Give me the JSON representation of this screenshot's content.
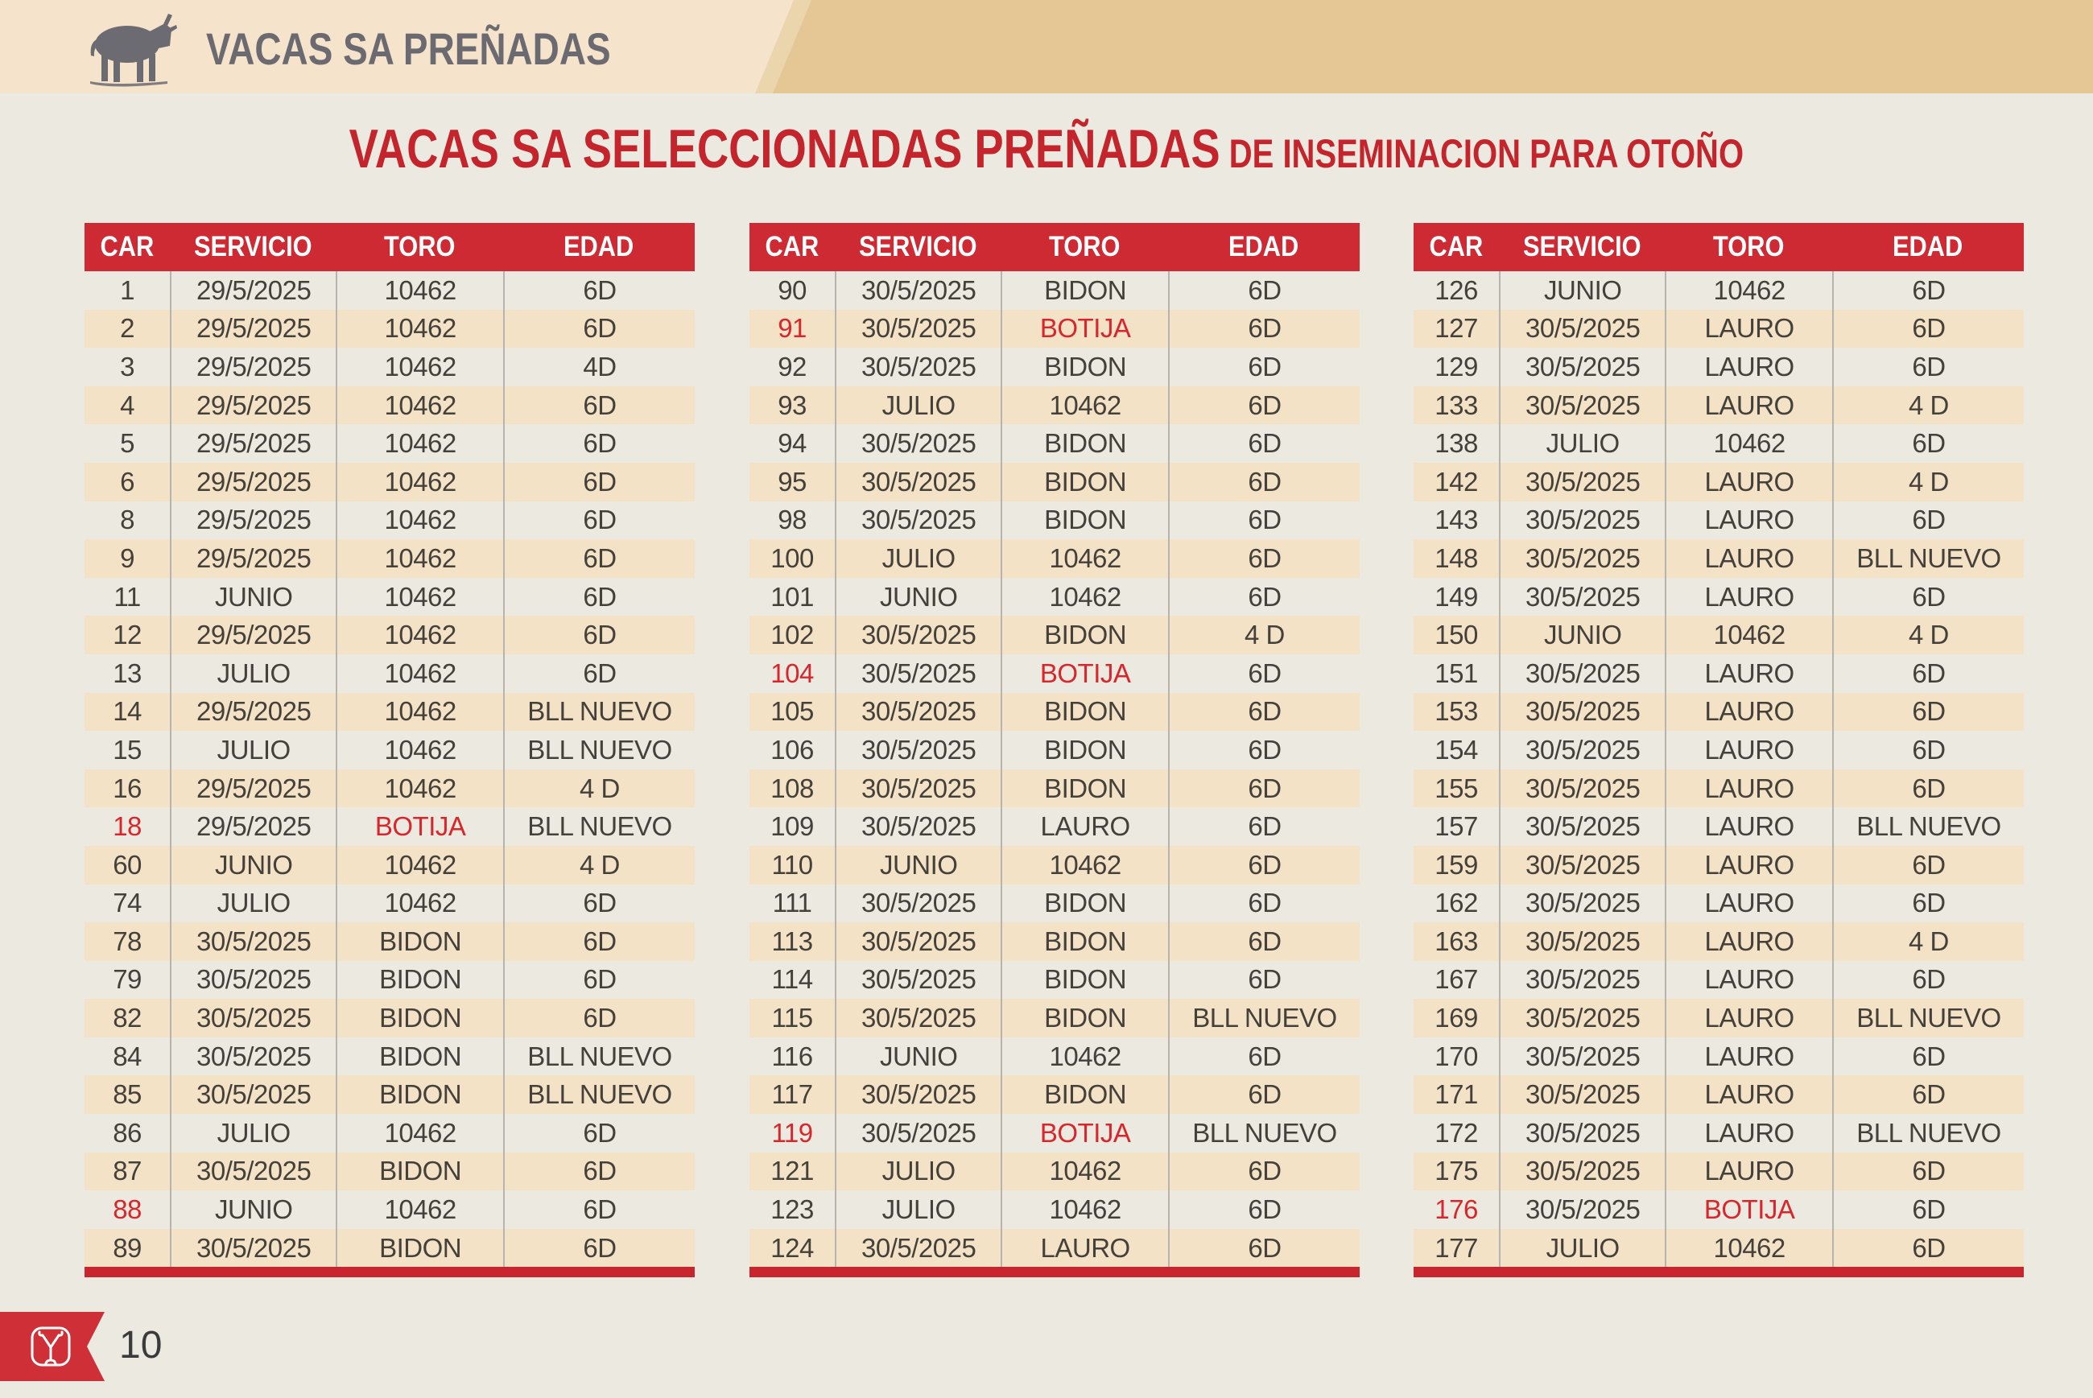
{
  "header": {
    "title": "VACAS SA PREÑADAS"
  },
  "page_title": {
    "main": "VACAS SA SELECCIONADAS PREÑADAS",
    "sub": " DE INSEMINACION PARA OTOÑO"
  },
  "columns": [
    "CAR",
    "SERVICIO",
    "TORO",
    "EDAD"
  ],
  "colors": {
    "band_light": "#F5E3CB",
    "band_dark": "#E5C795",
    "header_red": "#CE2A33",
    "title_red": "#C4242B",
    "highlight_red": "#D8262C",
    "row_tan": "#F4E2C7",
    "page_bg": "#ECEAE0",
    "text_dark": "#44403A",
    "text_gray": "#6B6A70"
  },
  "tables": [
    {
      "rows": [
        {
          "car": "1",
          "servicio": "29/5/2025",
          "toro": "10462",
          "edad": "6D",
          "car_red": false,
          "toro_red": false
        },
        {
          "car": "2",
          "servicio": "29/5/2025",
          "toro": "10462",
          "edad": "6D",
          "car_red": false,
          "toro_red": false
        },
        {
          "car": "3",
          "servicio": "29/5/2025",
          "toro": "10462",
          "edad": "4D",
          "car_red": false,
          "toro_red": false
        },
        {
          "car": "4",
          "servicio": "29/5/2025",
          "toro": "10462",
          "edad": "6D",
          "car_red": false,
          "toro_red": false
        },
        {
          "car": "5",
          "servicio": "29/5/2025",
          "toro": "10462",
          "edad": "6D",
          "car_red": false,
          "toro_red": false
        },
        {
          "car": "6",
          "servicio": "29/5/2025",
          "toro": "10462",
          "edad": "6D",
          "car_red": false,
          "toro_red": false
        },
        {
          "car": "8",
          "servicio": "29/5/2025",
          "toro": "10462",
          "edad": "6D",
          "car_red": false,
          "toro_red": false
        },
        {
          "car": "9",
          "servicio": "29/5/2025",
          "toro": "10462",
          "edad": "6D",
          "car_red": false,
          "toro_red": false
        },
        {
          "car": "11",
          "servicio": "JUNIO",
          "toro": "10462",
          "edad": "6D",
          "car_red": false,
          "toro_red": false
        },
        {
          "car": "12",
          "servicio": "29/5/2025",
          "toro": "10462",
          "edad": "6D",
          "car_red": false,
          "toro_red": false
        },
        {
          "car": "13",
          "servicio": "JULIO",
          "toro": "10462",
          "edad": "6D",
          "car_red": false,
          "toro_red": false
        },
        {
          "car": "14",
          "servicio": "29/5/2025",
          "toro": "10462",
          "edad": "BLL NUEVO",
          "car_red": false,
          "toro_red": false
        },
        {
          "car": "15",
          "servicio": "JULIO",
          "toro": "10462",
          "edad": "BLL NUEVO",
          "car_red": false,
          "toro_red": false
        },
        {
          "car": "16",
          "servicio": "29/5/2025",
          "toro": "10462",
          "edad": "4 D",
          "car_red": false,
          "toro_red": false
        },
        {
          "car": "18",
          "servicio": "29/5/2025",
          "toro": "BOTIJA",
          "edad": "BLL NUEVO",
          "car_red": true,
          "toro_red": true
        },
        {
          "car": "60",
          "servicio": "JUNIO",
          "toro": "10462",
          "edad": "4 D",
          "car_red": false,
          "toro_red": false
        },
        {
          "car": "74",
          "servicio": "JULIO",
          "toro": "10462",
          "edad": "6D",
          "car_red": false,
          "toro_red": false
        },
        {
          "car": "78",
          "servicio": "30/5/2025",
          "toro": "BIDON",
          "edad": "6D",
          "car_red": false,
          "toro_red": false
        },
        {
          "car": "79",
          "servicio": "30/5/2025",
          "toro": "BIDON",
          "edad": "6D",
          "car_red": false,
          "toro_red": false
        },
        {
          "car": "82",
          "servicio": "30/5/2025",
          "toro": "BIDON",
          "edad": "6D",
          "car_red": false,
          "toro_red": false
        },
        {
          "car": "84",
          "servicio": "30/5/2025",
          "toro": "BIDON",
          "edad": "BLL NUEVO",
          "car_red": false,
          "toro_red": false
        },
        {
          "car": "85",
          "servicio": "30/5/2025",
          "toro": "BIDON",
          "edad": "BLL NUEVO",
          "car_red": false,
          "toro_red": false
        },
        {
          "car": "86",
          "servicio": "JULIO",
          "toro": "10462",
          "edad": "6D",
          "car_red": false,
          "toro_red": false
        },
        {
          "car": "87",
          "servicio": "30/5/2025",
          "toro": "BIDON",
          "edad": "6D",
          "car_red": false,
          "toro_red": false
        },
        {
          "car": "88",
          "servicio": "JUNIO",
          "toro": "10462",
          "edad": "6D",
          "car_red": true,
          "toro_red": false
        },
        {
          "car": "89",
          "servicio": "30/5/2025",
          "toro": "BIDON",
          "edad": "6D",
          "car_red": false,
          "toro_red": false
        }
      ]
    },
    {
      "rows": [
        {
          "car": "90",
          "servicio": "30/5/2025",
          "toro": "BIDON",
          "edad": "6D",
          "car_red": false,
          "toro_red": false
        },
        {
          "car": "91",
          "servicio": "30/5/2025",
          "toro": "BOTIJA",
          "edad": "6D",
          "car_red": true,
          "toro_red": true
        },
        {
          "car": "92",
          "servicio": "30/5/2025",
          "toro": "BIDON",
          "edad": "6D",
          "car_red": false,
          "toro_red": false
        },
        {
          "car": "93",
          "servicio": "JULIO",
          "toro": "10462",
          "edad": "6D",
          "car_red": false,
          "toro_red": false
        },
        {
          "car": "94",
          "servicio": "30/5/2025",
          "toro": "BIDON",
          "edad": "6D",
          "car_red": false,
          "toro_red": false
        },
        {
          "car": "95",
          "servicio": "30/5/2025",
          "toro": "BIDON",
          "edad": "6D",
          "car_red": false,
          "toro_red": false
        },
        {
          "car": "98",
          "servicio": "30/5/2025",
          "toro": "BIDON",
          "edad": "6D",
          "car_red": false,
          "toro_red": false
        },
        {
          "car": "100",
          "servicio": "JULIO",
          "toro": "10462",
          "edad": "6D",
          "car_red": false,
          "toro_red": false
        },
        {
          "car": "101",
          "servicio": "JUNIO",
          "toro": "10462",
          "edad": "6D",
          "car_red": false,
          "toro_red": false
        },
        {
          "car": "102",
          "servicio": "30/5/2025",
          "toro": "BIDON",
          "edad": "4 D",
          "car_red": false,
          "toro_red": false
        },
        {
          "car": "104",
          "servicio": "30/5/2025",
          "toro": "BOTIJA",
          "edad": "6D",
          "car_red": true,
          "toro_red": true
        },
        {
          "car": "105",
          "servicio": "30/5/2025",
          "toro": "BIDON",
          "edad": "6D",
          "car_red": false,
          "toro_red": false
        },
        {
          "car": "106",
          "servicio": "30/5/2025",
          "toro": "BIDON",
          "edad": "6D",
          "car_red": false,
          "toro_red": false
        },
        {
          "car": "108",
          "servicio": "30/5/2025",
          "toro": "BIDON",
          "edad": "6D",
          "car_red": false,
          "toro_red": false
        },
        {
          "car": "109",
          "servicio": "30/5/2025",
          "toro": "LAURO",
          "edad": "6D",
          "car_red": false,
          "toro_red": false
        },
        {
          "car": "110",
          "servicio": "JUNIO",
          "toro": "10462",
          "edad": "6D",
          "car_red": false,
          "toro_red": false
        },
        {
          "car": "111",
          "servicio": "30/5/2025",
          "toro": "BIDON",
          "edad": "6D",
          "car_red": false,
          "toro_red": false
        },
        {
          "car": "113",
          "servicio": "30/5/2025",
          "toro": "BIDON",
          "edad": "6D",
          "car_red": false,
          "toro_red": false
        },
        {
          "car": "114",
          "servicio": "30/5/2025",
          "toro": "BIDON",
          "edad": "6D",
          "car_red": false,
          "toro_red": false
        },
        {
          "car": "115",
          "servicio": "30/5/2025",
          "toro": "BIDON",
          "edad": "BLL NUEVO",
          "car_red": false,
          "toro_red": false
        },
        {
          "car": "116",
          "servicio": "JUNIO",
          "toro": "10462",
          "edad": "6D",
          "car_red": false,
          "toro_red": false
        },
        {
          "car": "117",
          "servicio": "30/5/2025",
          "toro": "BIDON",
          "edad": "6D",
          "car_red": false,
          "toro_red": false
        },
        {
          "car": "119",
          "servicio": "30/5/2025",
          "toro": "BOTIJA",
          "edad": "BLL NUEVO",
          "car_red": true,
          "toro_red": true
        },
        {
          "car": "121",
          "servicio": "JULIO",
          "toro": "10462",
          "edad": "6D",
          "car_red": false,
          "toro_red": false
        },
        {
          "car": "123",
          "servicio": "JULIO",
          "toro": "10462",
          "edad": "6D",
          "car_red": false,
          "toro_red": false
        },
        {
          "car": "124",
          "servicio": "30/5/2025",
          "toro": "LAURO",
          "edad": "6D",
          "car_red": false,
          "toro_red": false
        }
      ]
    },
    {
      "rows": [
        {
          "car": "126",
          "servicio": "JUNIO",
          "toro": "10462",
          "edad": "6D",
          "car_red": false,
          "toro_red": false
        },
        {
          "car": "127",
          "servicio": "30/5/2025",
          "toro": "LAURO",
          "edad": "6D",
          "car_red": false,
          "toro_red": false
        },
        {
          "car": "129",
          "servicio": "30/5/2025",
          "toro": "LAURO",
          "edad": "6D",
          "car_red": false,
          "toro_red": false
        },
        {
          "car": "133",
          "servicio": "30/5/2025",
          "toro": "LAURO",
          "edad": "4 D",
          "car_red": false,
          "toro_red": false
        },
        {
          "car": "138",
          "servicio": "JULIO",
          "toro": "10462",
          "edad": "6D",
          "car_red": false,
          "toro_red": false
        },
        {
          "car": "142",
          "servicio": "30/5/2025",
          "toro": "LAURO",
          "edad": "4 D",
          "car_red": false,
          "toro_red": false
        },
        {
          "car": "143",
          "servicio": "30/5/2025",
          "toro": "LAURO",
          "edad": "6D",
          "car_red": false,
          "toro_red": false
        },
        {
          "car": "148",
          "servicio": "30/5/2025",
          "toro": "LAURO",
          "edad": "BLL NUEVO",
          "car_red": false,
          "toro_red": false
        },
        {
          "car": "149",
          "servicio": "30/5/2025",
          "toro": "LAURO",
          "edad": "6D",
          "car_red": false,
          "toro_red": false
        },
        {
          "car": "150",
          "servicio": "JUNIO",
          "toro": "10462",
          "edad": "4 D",
          "car_red": false,
          "toro_red": false
        },
        {
          "car": "151",
          "servicio": "30/5/2025",
          "toro": "LAURO",
          "edad": "6D",
          "car_red": false,
          "toro_red": false
        },
        {
          "car": "153",
          "servicio": "30/5/2025",
          "toro": "LAURO",
          "edad": "6D",
          "car_red": false,
          "toro_red": false
        },
        {
          "car": "154",
          "servicio": "30/5/2025",
          "toro": "LAURO",
          "edad": "6D",
          "car_red": false,
          "toro_red": false
        },
        {
          "car": "155",
          "servicio": "30/5/2025",
          "toro": "LAURO",
          "edad": "6D",
          "car_red": false,
          "toro_red": false
        },
        {
          "car": "157",
          "servicio": "30/5/2025",
          "toro": "LAURO",
          "edad": "BLL NUEVO",
          "car_red": false,
          "toro_red": false
        },
        {
          "car": "159",
          "servicio": "30/5/2025",
          "toro": "LAURO",
          "edad": "6D",
          "car_red": false,
          "toro_red": false
        },
        {
          "car": "162",
          "servicio": "30/5/2025",
          "toro": "LAURO",
          "edad": "6D",
          "car_red": false,
          "toro_red": false
        },
        {
          "car": "163",
          "servicio": "30/5/2025",
          "toro": "LAURO",
          "edad": "4 D",
          "car_red": false,
          "toro_red": false
        },
        {
          "car": "167",
          "servicio": "30/5/2025",
          "toro": "LAURO",
          "edad": "6D",
          "car_red": false,
          "toro_red": false
        },
        {
          "car": "169",
          "servicio": "30/5/2025",
          "toro": "LAURO",
          "edad": "BLL NUEVO",
          "car_red": false,
          "toro_red": false
        },
        {
          "car": "170",
          "servicio": "30/5/2025",
          "toro": "LAURO",
          "edad": "6D",
          "car_red": false,
          "toro_red": false
        },
        {
          "car": "171",
          "servicio": "30/5/2025",
          "toro": "LAURO",
          "edad": "6D",
          "car_red": false,
          "toro_red": false
        },
        {
          "car": "172",
          "servicio": "30/5/2025",
          "toro": "LAURO",
          "edad": "BLL NUEVO",
          "car_red": false,
          "toro_red": false
        },
        {
          "car": "175",
          "servicio": "30/5/2025",
          "toro": "LAURO",
          "edad": "6D",
          "car_red": false,
          "toro_red": false
        },
        {
          "car": "176",
          "servicio": "30/5/2025",
          "toro": "BOTIJA",
          "edad": "6D",
          "car_red": true,
          "toro_red": true
        },
        {
          "car": "177",
          "servicio": "JULIO",
          "toro": "10462",
          "edad": "6D",
          "car_red": false,
          "toro_red": false
        }
      ]
    }
  ],
  "footer": {
    "page_number": "10"
  }
}
